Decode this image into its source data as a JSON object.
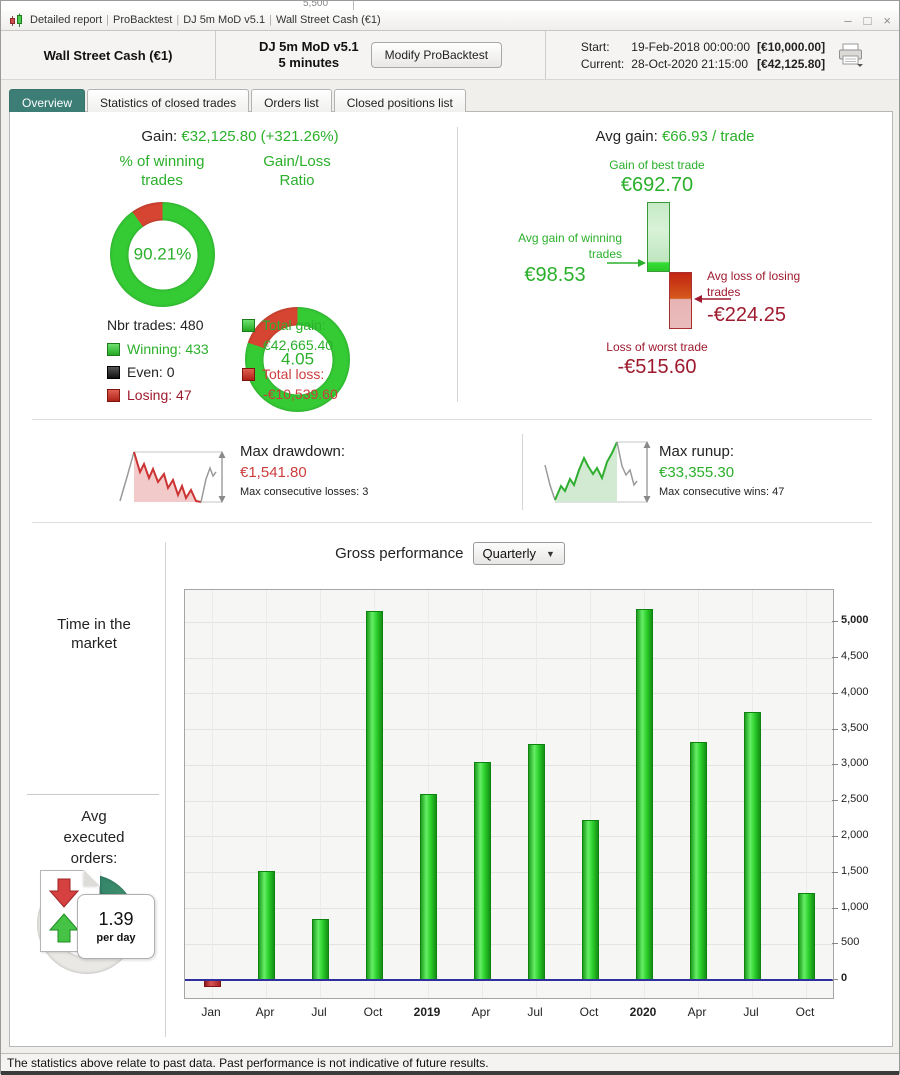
{
  "window": {
    "title_parts": [
      "Detailed report",
      "ProBacktest",
      "DJ 5m MoD v5.1",
      "Wall Street Cash (€1)"
    ],
    "separator": "|",
    "controls": {
      "minimize": "–",
      "maximize": "□",
      "close": "×"
    },
    "background_fragment": "5,500"
  },
  "header": {
    "instrument": "Wall Street Cash (€1)",
    "system_line1": "DJ 5m MoD v5.1",
    "system_line2": "5 minutes",
    "modify_button": "Modify ProBacktest",
    "start_label": "Start:",
    "start_datetime": "19-Feb-2018 00:00:00",
    "start_value": "[€10,000.00]",
    "current_label": "Current:",
    "current_datetime": "28-Oct-2020 21:15:00",
    "current_value": "[€42,125.80]"
  },
  "tabs": [
    {
      "label": "Overview",
      "active": true
    },
    {
      "label": "Statistics of closed trades",
      "active": false
    },
    {
      "label": "Orders list",
      "active": false
    },
    {
      "label": "Closed positions list",
      "active": false
    }
  ],
  "overview": {
    "gain_label": "Gain:",
    "gain_value": "€32,125.80 (+321.26%)",
    "winning_donut": {
      "title": "% of winning\ntrades",
      "value": "90.21%",
      "win_pct": 90.21
    },
    "ratio_donut": {
      "title": "Gain/Loss\nRatio",
      "value": "4.05",
      "ratio": 4.05
    },
    "nbr_trades": "Nbr trades: 480",
    "legend": {
      "winning": "Winning: 433",
      "even": "Even: 0",
      "losing": "Losing: 47"
    },
    "totals": {
      "gain_label": "Total gain:",
      "gain_value": "€42,665.40",
      "loss_label": "Total loss:",
      "loss_value": "-€10,539.60"
    },
    "avg_gain_label": "Avg gain:",
    "avg_gain_value": "€66.93 / trade",
    "trade_extremes": {
      "best_label": "Gain of best trade",
      "best_value": "€692.70",
      "avg_win_label": "Avg gain of winning\ntrades",
      "avg_win_value": "€98.53",
      "avg_loss_label": "Avg loss of losing\ntrades",
      "avg_loss_value": "-€224.25",
      "worst_label": "Loss of worst trade",
      "worst_value": "-€515.60"
    }
  },
  "drawdown": {
    "label": "Max drawdown:",
    "value": "€1,541.80",
    "sub": "Max consecutive losses: 3"
  },
  "runup": {
    "label": "Max runup:",
    "value": "€33,355.30",
    "sub": "Max consecutive wins: 47"
  },
  "performance": {
    "title": "Gross performance",
    "period": "Quarterly"
  },
  "time_in_market": {
    "title": "Time in the\nmarket",
    "value": "36.4%",
    "pct": 36.4
  },
  "avg_orders": {
    "title": "Avg\nexecuted\norders:",
    "value": "1.39",
    "unit": "per day"
  },
  "chart_data": {
    "type": "bar",
    "title": "Gross performance",
    "period": "Quarterly",
    "categories": [
      "Jan",
      "Apr",
      "Jul",
      "Oct",
      "2019",
      "Apr",
      "Jul",
      "Oct",
      "2020",
      "Apr",
      "Jul",
      "Oct"
    ],
    "bold_categories": [
      "2019",
      "2020"
    ],
    "values": [
      -100,
      1530,
      855,
      5150,
      2600,
      3050,
      3300,
      2230,
      5180,
      3330,
      3740,
      1215
    ],
    "y_ticks": [
      0,
      500,
      1000,
      1500,
      2000,
      2500,
      3000,
      3500,
      4000,
      4500,
      5000
    ],
    "bold_ticks": [
      0,
      5000
    ],
    "ylim": [
      -250,
      5450
    ],
    "xlabel": "",
    "ylabel": "",
    "grid": true,
    "axis_side": "right",
    "bar_color_positive": "#2fd32f",
    "bar_color_negative": "#a32222",
    "zero_line_color": "#2f2f9e"
  },
  "footer": {
    "disclaimer": "The statistics above relate to past data. Past performance is not indicative of future results."
  },
  "colors": {
    "accent_teal": "#3c7e76",
    "text_green": "#2bb02b",
    "text_red": "#cd3d3d",
    "text_dark_red": "#9e1a2e",
    "donut_green": "#35cb35",
    "donut_red": "#d64532",
    "time_teal_dark": "#2f7f68",
    "time_teal_light": "#52a877",
    "donut_rest_gray": "#e9e8e5"
  }
}
